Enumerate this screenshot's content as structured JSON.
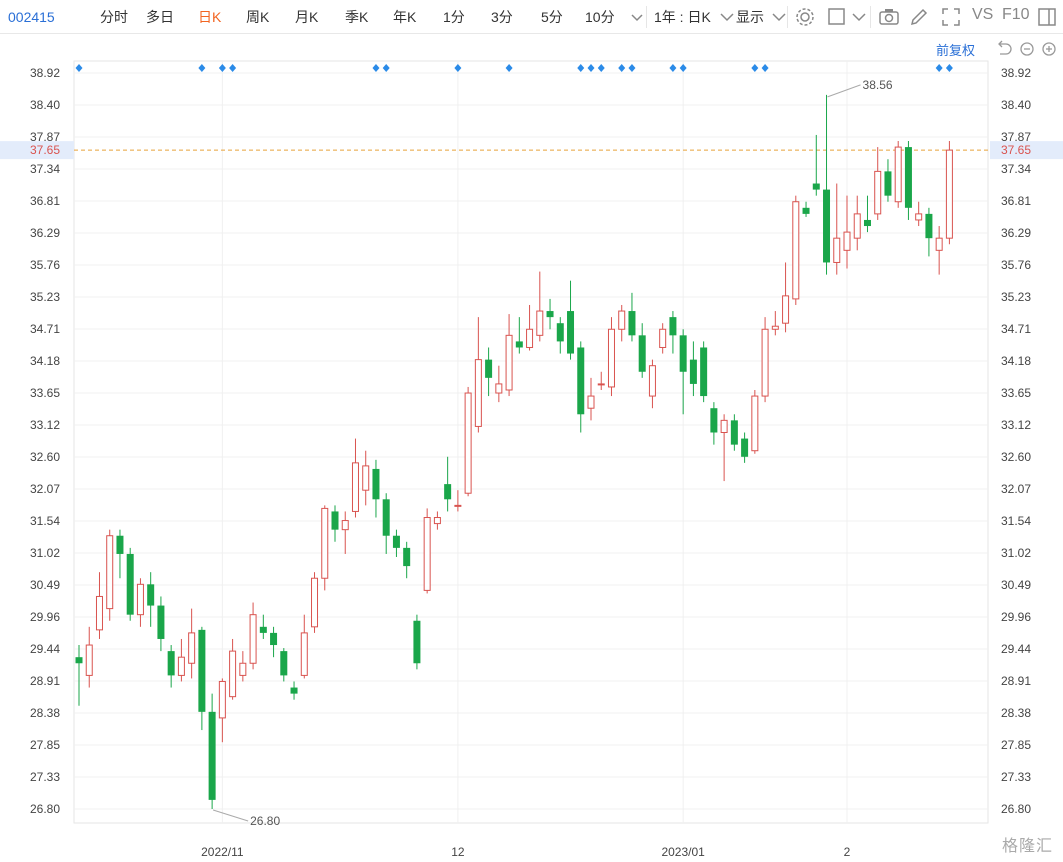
{
  "toolbar": {
    "code": "002415",
    "items": [
      "分时",
      "多日",
      "日K",
      "周K",
      "月K",
      "季K",
      "年K",
      "1分",
      "3分",
      "5分",
      "10分"
    ],
    "active_index": 2,
    "range_label": "1年 : 日K",
    "display_label": "显示",
    "vs_label": "VS",
    "f10_label": "F10"
  },
  "subbar": {
    "adjust_label": "前复权"
  },
  "watermark": "格隆汇",
  "colors": {
    "up": "#d9534f",
    "down": "#1aa64a",
    "ref_line": "#e8a23a",
    "ref_bg": "#e3ecfb",
    "marker": "#2b8be8"
  },
  "chart_data": {
    "type": "candlestick",
    "y_ticks": [
      "38.92",
      "38.40",
      "37.87",
      "37.34",
      "36.81",
      "36.29",
      "35.76",
      "35.23",
      "34.71",
      "34.18",
      "33.65",
      "33.12",
      "32.60",
      "32.07",
      "31.54",
      "31.02",
      "30.49",
      "29.96",
      "29.44",
      "28.91",
      "28.38",
      "27.85",
      "27.33",
      "26.80"
    ],
    "ylim": [
      26.8,
      38.92
    ],
    "x_labels": [
      {
        "label": "2022/11",
        "index": 14
      },
      {
        "label": "12",
        "index": 37
      },
      {
        "label": "2023/01",
        "index": 59
      },
      {
        "label": "2",
        "index": 75
      }
    ],
    "current_price": "37.65",
    "high_annotation": {
      "value": "38.56",
      "index": 73
    },
    "low_annotation": {
      "value": "26.80",
      "index": 13
    },
    "marker_indices": [
      0,
      12,
      14,
      15,
      29,
      30,
      37,
      42,
      49,
      50,
      51,
      53,
      54,
      58,
      59,
      66,
      67,
      84,
      85
    ],
    "candles": [
      [
        29.3,
        29.2,
        28.5,
        29.5
      ],
      [
        29.0,
        29.5,
        28.8,
        29.8
      ],
      [
        29.75,
        30.3,
        29.6,
        30.7
      ],
      [
        30.1,
        31.3,
        29.9,
        31.4
      ],
      [
        31.3,
        31.0,
        30.6,
        31.4
      ],
      [
        31.0,
        30.0,
        29.9,
        31.1
      ],
      [
        30.0,
        30.5,
        29.8,
        30.6
      ],
      [
        30.5,
        30.15,
        29.8,
        30.7
      ],
      [
        30.15,
        29.6,
        29.4,
        30.3
      ],
      [
        29.4,
        29.0,
        28.8,
        29.5
      ],
      [
        29.0,
        29.3,
        28.9,
        29.6
      ],
      [
        29.2,
        29.7,
        28.95,
        30.1
      ],
      [
        29.75,
        28.4,
        28.1,
        29.8
      ],
      [
        28.4,
        26.95,
        26.8,
        28.7
      ],
      [
        28.3,
        28.9,
        27.9,
        28.95
      ],
      [
        28.65,
        29.4,
        28.6,
        29.6
      ],
      [
        29.0,
        29.2,
        28.9,
        29.4
      ],
      [
        29.2,
        30.0,
        29.1,
        30.2
      ],
      [
        29.8,
        29.7,
        29.6,
        30.0
      ],
      [
        29.7,
        29.5,
        29.3,
        29.8
      ],
      [
        29.4,
        29.0,
        28.9,
        29.45
      ],
      [
        28.8,
        28.7,
        28.6,
        28.9
      ],
      [
        29.0,
        29.7,
        28.95,
        30.0
      ],
      [
        29.8,
        30.6,
        29.7,
        30.7
      ],
      [
        30.6,
        31.75,
        30.4,
        31.8
      ],
      [
        31.7,
        31.4,
        31.2,
        31.8
      ],
      [
        31.4,
        31.55,
        31.0,
        31.7
      ],
      [
        31.7,
        32.5,
        31.6,
        32.9
      ],
      [
        32.05,
        32.45,
        31.8,
        32.7
      ],
      [
        32.4,
        31.9,
        31.6,
        32.55
      ],
      [
        31.9,
        31.3,
        31.0,
        32.0
      ],
      [
        31.3,
        31.1,
        30.95,
        31.4
      ],
      [
        31.1,
        30.8,
        30.6,
        31.2
      ],
      [
        29.9,
        29.2,
        29.1,
        30.0
      ],
      [
        30.4,
        31.6,
        30.35,
        31.75
      ],
      [
        31.5,
        31.6,
        31.4,
        31.7
      ],
      [
        32.15,
        31.9,
        31.7,
        32.6
      ],
      [
        31.8,
        31.8,
        31.7,
        32.05
      ],
      [
        32.0,
        33.65,
        31.95,
        33.75
      ],
      [
        33.1,
        34.2,
        33.0,
        34.9
      ],
      [
        34.2,
        33.9,
        33.6,
        34.4
      ],
      [
        33.65,
        33.8,
        33.5,
        34.1
      ],
      [
        33.7,
        34.6,
        33.6,
        34.95
      ],
      [
        34.5,
        34.4,
        34.3,
        34.9
      ],
      [
        34.4,
        34.7,
        34.35,
        35.1
      ],
      [
        34.6,
        35.0,
        34.5,
        35.65
      ],
      [
        35.0,
        34.9,
        34.7,
        35.2
      ],
      [
        34.8,
        34.5,
        34.3,
        34.9
      ],
      [
        35.0,
        34.3,
        34.2,
        35.5
      ],
      [
        34.4,
        33.3,
        33.0,
        34.5
      ],
      [
        33.4,
        33.6,
        33.2,
        33.9
      ],
      [
        33.8,
        33.8,
        33.7,
        34.0
      ],
      [
        33.75,
        34.7,
        33.6,
        34.9
      ],
      [
        34.7,
        35.0,
        34.5,
        35.1
      ],
      [
        35.0,
        34.6,
        34.5,
        35.3
      ],
      [
        34.6,
        34.0,
        33.9,
        34.8
      ],
      [
        33.6,
        34.1,
        33.4,
        34.2
      ],
      [
        34.4,
        34.7,
        34.3,
        34.8
      ],
      [
        34.9,
        34.6,
        34.3,
        35.0
      ],
      [
        34.6,
        34.0,
        33.3,
        34.7
      ],
      [
        34.2,
        33.8,
        33.6,
        34.5
      ],
      [
        34.4,
        33.6,
        33.5,
        34.5
      ],
      [
        33.4,
        33.0,
        32.8,
        33.5
      ],
      [
        33.0,
        33.2,
        32.2,
        33.3
      ],
      [
        33.2,
        32.8,
        32.7,
        33.3
      ],
      [
        32.9,
        32.6,
        32.5,
        33.0
      ],
      [
        32.7,
        33.6,
        32.65,
        33.7
      ],
      [
        33.6,
        34.7,
        33.5,
        34.9
      ],
      [
        34.7,
        34.75,
        34.6,
        35.0
      ],
      [
        34.8,
        35.25,
        34.65,
        35.8
      ],
      [
        35.2,
        36.8,
        35.1,
        36.9
      ],
      [
        36.7,
        36.6,
        36.55,
        36.8
      ],
      [
        37.1,
        37.0,
        36.9,
        37.9
      ],
      [
        37.0,
        35.8,
        35.6,
        38.56
      ],
      [
        35.8,
        36.2,
        35.6,
        37.1
      ],
      [
        36.0,
        36.3,
        35.7,
        36.9
      ],
      [
        36.2,
        36.6,
        36.0,
        36.9
      ],
      [
        36.5,
        36.4,
        36.3,
        36.9
      ],
      [
        36.6,
        37.3,
        36.5,
        37.7
      ],
      [
        37.3,
        36.9,
        36.8,
        37.5
      ],
      [
        36.8,
        37.7,
        36.7,
        37.8
      ],
      [
        37.7,
        36.7,
        36.5,
        37.8
      ],
      [
        36.5,
        36.6,
        36.4,
        36.8
      ],
      [
        36.6,
        36.2,
        35.9,
        36.7
      ],
      [
        36.0,
        36.2,
        35.6,
        36.4
      ],
      [
        36.2,
        37.65,
        36.1,
        37.8
      ]
    ]
  }
}
